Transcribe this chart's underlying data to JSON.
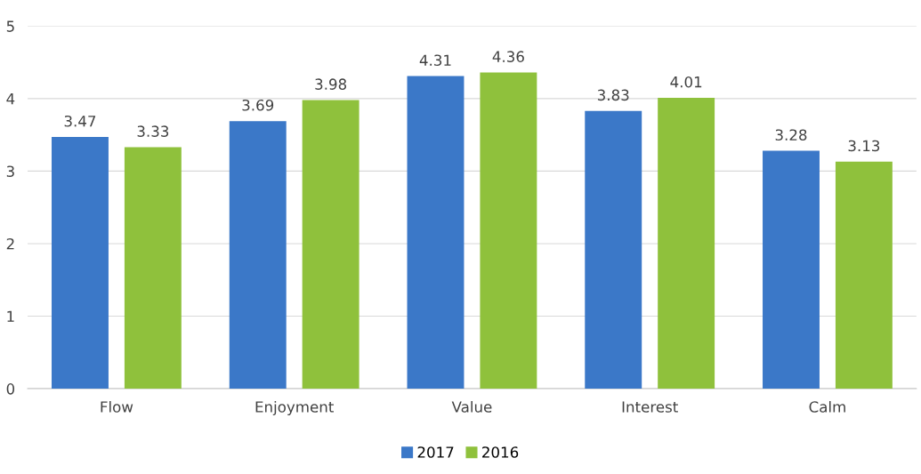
{
  "chart_data": {
    "type": "bar",
    "categories": [
      "Flow",
      "Enjoyment",
      "Value",
      "Interest",
      "Calm"
    ],
    "series": [
      {
        "name": "2017",
        "color": "#3b78c8",
        "values": [
          3.47,
          3.69,
          4.31,
          3.83,
          3.28
        ]
      },
      {
        "name": "2016",
        "color": "#8fc13c",
        "values": [
          3.33,
          3.98,
          4.36,
          4.01,
          3.13
        ]
      }
    ],
    "ylim": [
      0,
      5
    ],
    "yticks": [
      0,
      1,
      2,
      3,
      4,
      5
    ],
    "grid": "y",
    "legend": "bottom",
    "data_labels": true
  }
}
